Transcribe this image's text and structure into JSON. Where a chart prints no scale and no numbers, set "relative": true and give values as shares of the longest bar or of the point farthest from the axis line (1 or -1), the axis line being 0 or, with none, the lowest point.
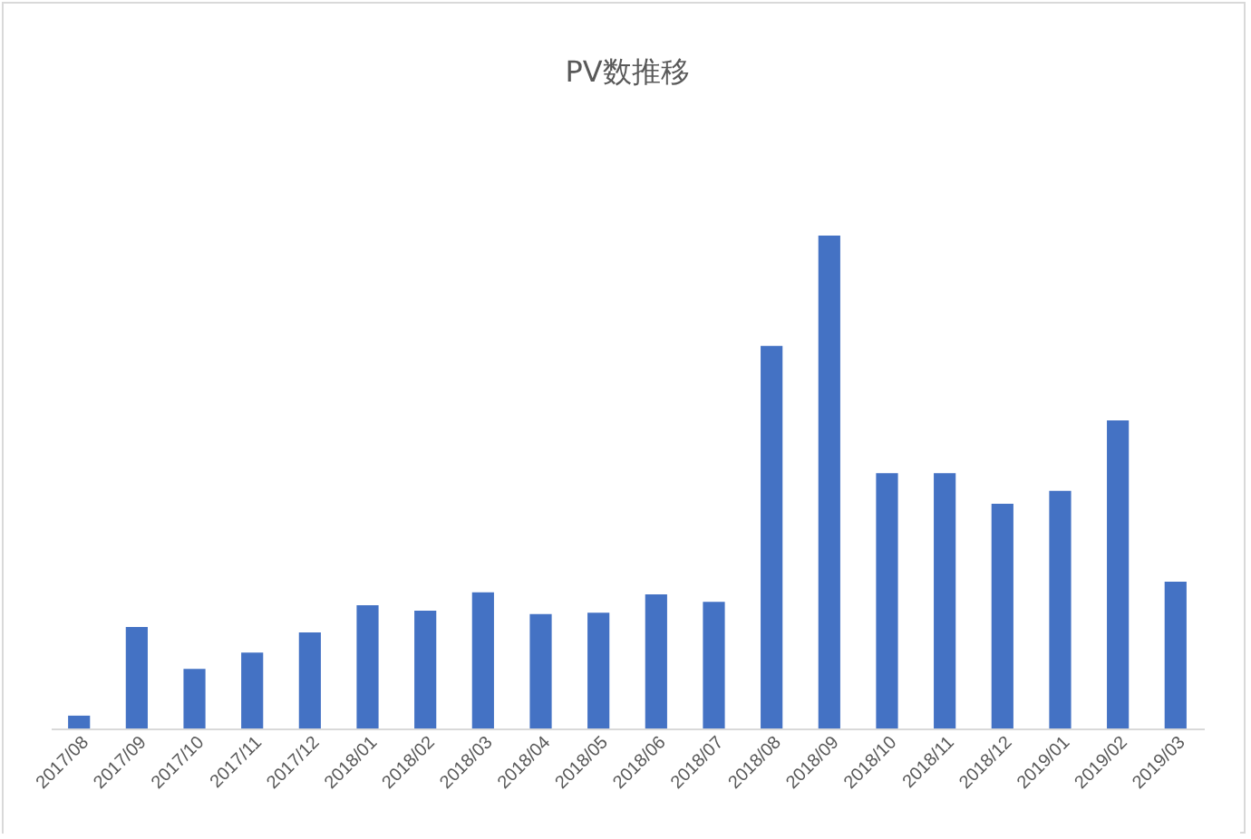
{
  "chart_data": {
    "type": "bar",
    "title": "PV数推移",
    "relative": true,
    "color": "#4472c4",
    "grid": false,
    "categories": [
      "2017/08",
      "2017/09",
      "2017/10",
      "2017/11",
      "2017/12",
      "2018/01",
      "2018/02",
      "2018/03",
      "2018/04",
      "2018/05",
      "2018/06",
      "2018/07",
      "2018/08",
      "2018/09",
      "2018/10",
      "2018/11",
      "2018/12",
      "2019/01",
      "2019/02",
      "2019/03"
    ],
    "values": [
      0.026,
      0.206,
      0.121,
      0.154,
      0.195,
      0.25,
      0.239,
      0.276,
      0.232,
      0.235,
      0.272,
      0.257,
      0.776,
      1,
      0.518,
      0.518,
      0.456,
      0.482,
      0.625,
      0.298
    ]
  }
}
